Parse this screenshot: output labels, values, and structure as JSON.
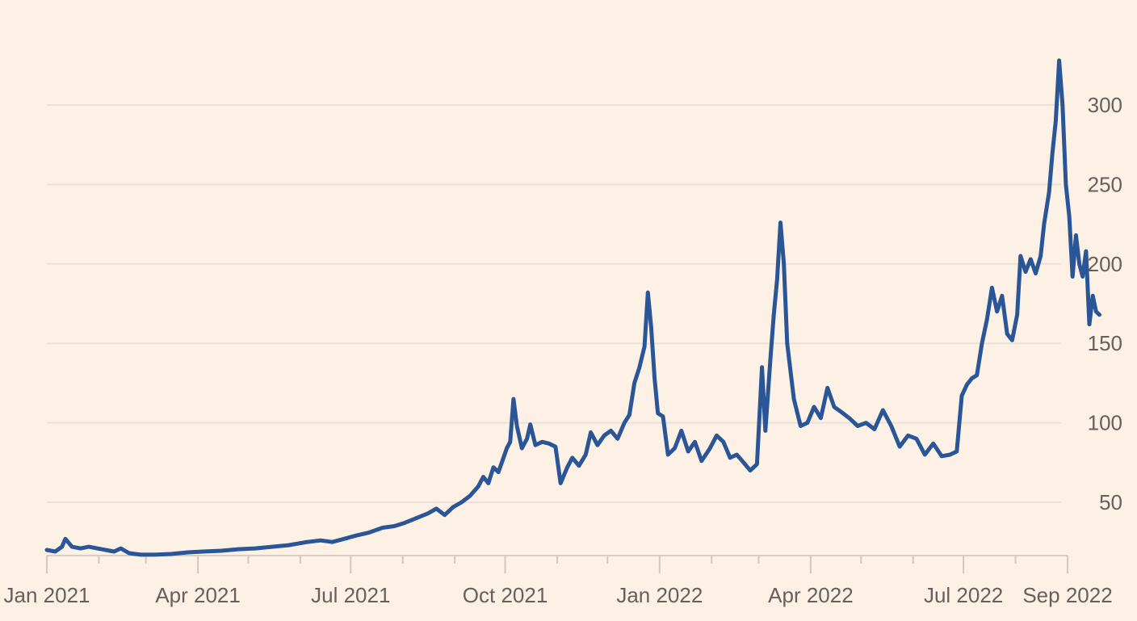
{
  "chart_data": {
    "type": "line",
    "title": "",
    "xlabel": "",
    "ylabel": "",
    "xlim": [
      "2021-01-01",
      "2022-09-01"
    ],
    "ylim": [
      15,
      340
    ],
    "x_ticks": [
      "Jan 2021",
      "Apr 2021",
      "Jul 2021",
      "Oct 2021",
      "Jan 2022",
      "Apr 2022",
      "Jul 2022",
      "Sep 2022"
    ],
    "y_ticks": [
      50,
      100,
      150,
      200,
      250,
      300
    ],
    "grid": true,
    "y_axis_side": "right",
    "legend": "none",
    "colors": {
      "background": "#fdf1e6",
      "line": "#2a5596",
      "grid": "#ebe1d7",
      "text": "#66605c"
    },
    "series": [
      {
        "values": [
          [
            "2021-01-01",
            20
          ],
          [
            "2021-01-06",
            19
          ],
          [
            "2021-01-10",
            22
          ],
          [
            "2021-01-12",
            27
          ],
          [
            "2021-01-16",
            22
          ],
          [
            "2021-01-21",
            21
          ],
          [
            "2021-01-26",
            22
          ],
          [
            "2021-01-31",
            21
          ],
          [
            "2021-02-05",
            20
          ],
          [
            "2021-02-10",
            19
          ],
          [
            "2021-02-14",
            21
          ],
          [
            "2021-02-19",
            18
          ],
          [
            "2021-02-26",
            17
          ],
          [
            "2021-03-06",
            17
          ],
          [
            "2021-03-16",
            17.5
          ],
          [
            "2021-03-26",
            18.5
          ],
          [
            "2021-04-04",
            19
          ],
          [
            "2021-04-15",
            19.5
          ],
          [
            "2021-04-25",
            20.5
          ],
          [
            "2021-05-05",
            21
          ],
          [
            "2021-05-15",
            22
          ],
          [
            "2021-05-25",
            23
          ],
          [
            "2021-06-05",
            25
          ],
          [
            "2021-06-13",
            26
          ],
          [
            "2021-06-20",
            25
          ],
          [
            "2021-06-27",
            27
          ],
          [
            "2021-07-04",
            29
          ],
          [
            "2021-07-12",
            31
          ],
          [
            "2021-07-20",
            34
          ],
          [
            "2021-07-27",
            35
          ],
          [
            "2021-08-02",
            37
          ],
          [
            "2021-08-09",
            40
          ],
          [
            "2021-08-16",
            43
          ],
          [
            "2021-08-21",
            46
          ],
          [
            "2021-08-26",
            42
          ],
          [
            "2021-08-31",
            47
          ],
          [
            "2021-09-05",
            50
          ],
          [
            "2021-09-10",
            54
          ],
          [
            "2021-09-15",
            60
          ],
          [
            "2021-09-18",
            66
          ],
          [
            "2021-09-21",
            62
          ],
          [
            "2021-09-24",
            72
          ],
          [
            "2021-09-27",
            69
          ],
          [
            "2021-09-30",
            78
          ],
          [
            "2021-10-02",
            84
          ],
          [
            "2021-10-04",
            88
          ],
          [
            "2021-10-06",
            115
          ],
          [
            "2021-10-08",
            98
          ],
          [
            "2021-10-11",
            84
          ],
          [
            "2021-10-14",
            90
          ],
          [
            "2021-10-16",
            99
          ],
          [
            "2021-10-19",
            86
          ],
          [
            "2021-10-23",
            88
          ],
          [
            "2021-10-27",
            87
          ],
          [
            "2021-10-31",
            85
          ],
          [
            "2021-11-03",
            62
          ],
          [
            "2021-11-07",
            72
          ],
          [
            "2021-11-10",
            78
          ],
          [
            "2021-11-14",
            73
          ],
          [
            "2021-11-18",
            80
          ],
          [
            "2021-11-21",
            94
          ],
          [
            "2021-11-25",
            86
          ],
          [
            "2021-11-29",
            92
          ],
          [
            "2021-12-03",
            95
          ],
          [
            "2021-12-07",
            90
          ],
          [
            "2021-12-11",
            100
          ],
          [
            "2021-12-14",
            105
          ],
          [
            "2021-12-17",
            125
          ],
          [
            "2021-12-20",
            135
          ],
          [
            "2021-12-23",
            148
          ],
          [
            "2021-12-25",
            182
          ],
          [
            "2021-12-27",
            160
          ],
          [
            "2021-12-29",
            128
          ],
          [
            "2021-12-31",
            106
          ],
          [
            "2022-01-03",
            104
          ],
          [
            "2022-01-06",
            80
          ],
          [
            "2022-01-10",
            84
          ],
          [
            "2022-01-14",
            95
          ],
          [
            "2022-01-18",
            82
          ],
          [
            "2022-01-22",
            88
          ],
          [
            "2022-01-26",
            76
          ],
          [
            "2022-01-31",
            84
          ],
          [
            "2022-02-04",
            92
          ],
          [
            "2022-02-08",
            88
          ],
          [
            "2022-02-12",
            78
          ],
          [
            "2022-02-16",
            80
          ],
          [
            "2022-02-20",
            75
          ],
          [
            "2022-02-24",
            70
          ],
          [
            "2022-02-28",
            74
          ],
          [
            "2022-03-03",
            135
          ],
          [
            "2022-03-05",
            95
          ],
          [
            "2022-03-08",
            140
          ],
          [
            "2022-03-10",
            168
          ],
          [
            "2022-03-12",
            190
          ],
          [
            "2022-03-14",
            226
          ],
          [
            "2022-03-16",
            200
          ],
          [
            "2022-03-18",
            150
          ],
          [
            "2022-03-22",
            115
          ],
          [
            "2022-03-26",
            98
          ],
          [
            "2022-03-30",
            100
          ],
          [
            "2022-04-03",
            110
          ],
          [
            "2022-04-07",
            103
          ],
          [
            "2022-04-11",
            122
          ],
          [
            "2022-04-15",
            110
          ],
          [
            "2022-04-19",
            107
          ],
          [
            "2022-04-24",
            103
          ],
          [
            "2022-04-29",
            98
          ],
          [
            "2022-05-04",
            100
          ],
          [
            "2022-05-09",
            96
          ],
          [
            "2022-05-14",
            108
          ],
          [
            "2022-05-19",
            98
          ],
          [
            "2022-05-24",
            85
          ],
          [
            "2022-05-29",
            92
          ],
          [
            "2022-06-03",
            90
          ],
          [
            "2022-06-08",
            80
          ],
          [
            "2022-06-13",
            87
          ],
          [
            "2022-06-18",
            79
          ],
          [
            "2022-06-23",
            80
          ],
          [
            "2022-06-27",
            82
          ],
          [
            "2022-06-30",
            117
          ],
          [
            "2022-07-03",
            124
          ],
          [
            "2022-07-06",
            128
          ],
          [
            "2022-07-09",
            130
          ],
          [
            "2022-07-12",
            150
          ],
          [
            "2022-07-15",
            165
          ],
          [
            "2022-07-18",
            185
          ],
          [
            "2022-07-21",
            170
          ],
          [
            "2022-07-24",
            180
          ],
          [
            "2022-07-27",
            156
          ],
          [
            "2022-07-30",
            152
          ],
          [
            "2022-08-02",
            168
          ],
          [
            "2022-08-04",
            205
          ],
          [
            "2022-08-07",
            195
          ],
          [
            "2022-08-10",
            203
          ],
          [
            "2022-08-13",
            194
          ],
          [
            "2022-08-16",
            205
          ],
          [
            "2022-08-18",
            225
          ],
          [
            "2022-08-21",
            245
          ],
          [
            "2022-08-23",
            270
          ],
          [
            "2022-08-25",
            290
          ],
          [
            "2022-08-27",
            328
          ],
          [
            "2022-08-29",
            300
          ],
          [
            "2022-08-31",
            250
          ],
          [
            "2022-09-02",
            230
          ],
          [
            "2022-09-04",
            192
          ],
          [
            "2022-09-06",
            218
          ],
          [
            "2022-09-08",
            200
          ],
          [
            "2022-09-10",
            192
          ],
          [
            "2022-09-12",
            208
          ],
          [
            "2022-09-14",
            162
          ],
          [
            "2022-09-16",
            180
          ],
          [
            "2022-09-18",
            170
          ],
          [
            "2022-09-20",
            168
          ]
        ]
      }
    ]
  }
}
